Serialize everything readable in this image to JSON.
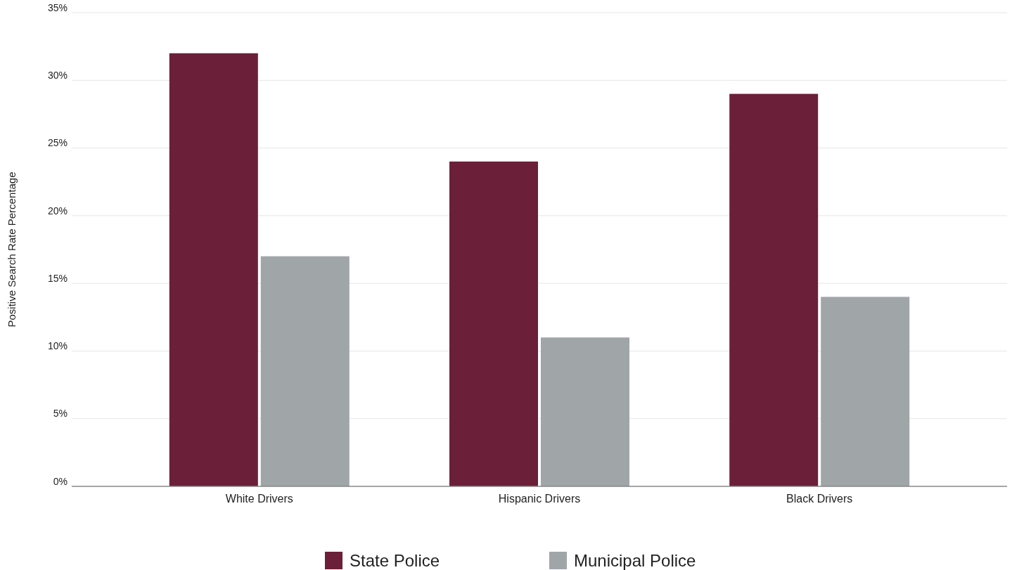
{
  "chart_data": {
    "type": "bar",
    "ylabel": "Positive Search Rate Percentage",
    "categories": [
      "White Drivers",
      "Hispanic Drivers",
      "Black Drivers"
    ],
    "series": [
      {
        "name": "State Police",
        "color": "#6b1f38",
        "values": [
          32,
          24,
          29
        ]
      },
      {
        "name": "Municipal Police",
        "color": "#a0a5a8",
        "values": [
          17,
          11,
          14
        ]
      }
    ],
    "ylim": [
      0,
      35
    ],
    "yticks": [
      {
        "value": 0,
        "label": "0%"
      },
      {
        "value": 5,
        "label": "5%"
      },
      {
        "value": 10,
        "label": "10%"
      },
      {
        "value": 15,
        "label": "15%"
      },
      {
        "value": 20,
        "label": "20%"
      },
      {
        "value": 25,
        "label": "25%"
      },
      {
        "value": 30,
        "label": "30%"
      },
      {
        "value": 35,
        "label": "35%"
      }
    ],
    "grid": "y",
    "legend": "bottom"
  }
}
